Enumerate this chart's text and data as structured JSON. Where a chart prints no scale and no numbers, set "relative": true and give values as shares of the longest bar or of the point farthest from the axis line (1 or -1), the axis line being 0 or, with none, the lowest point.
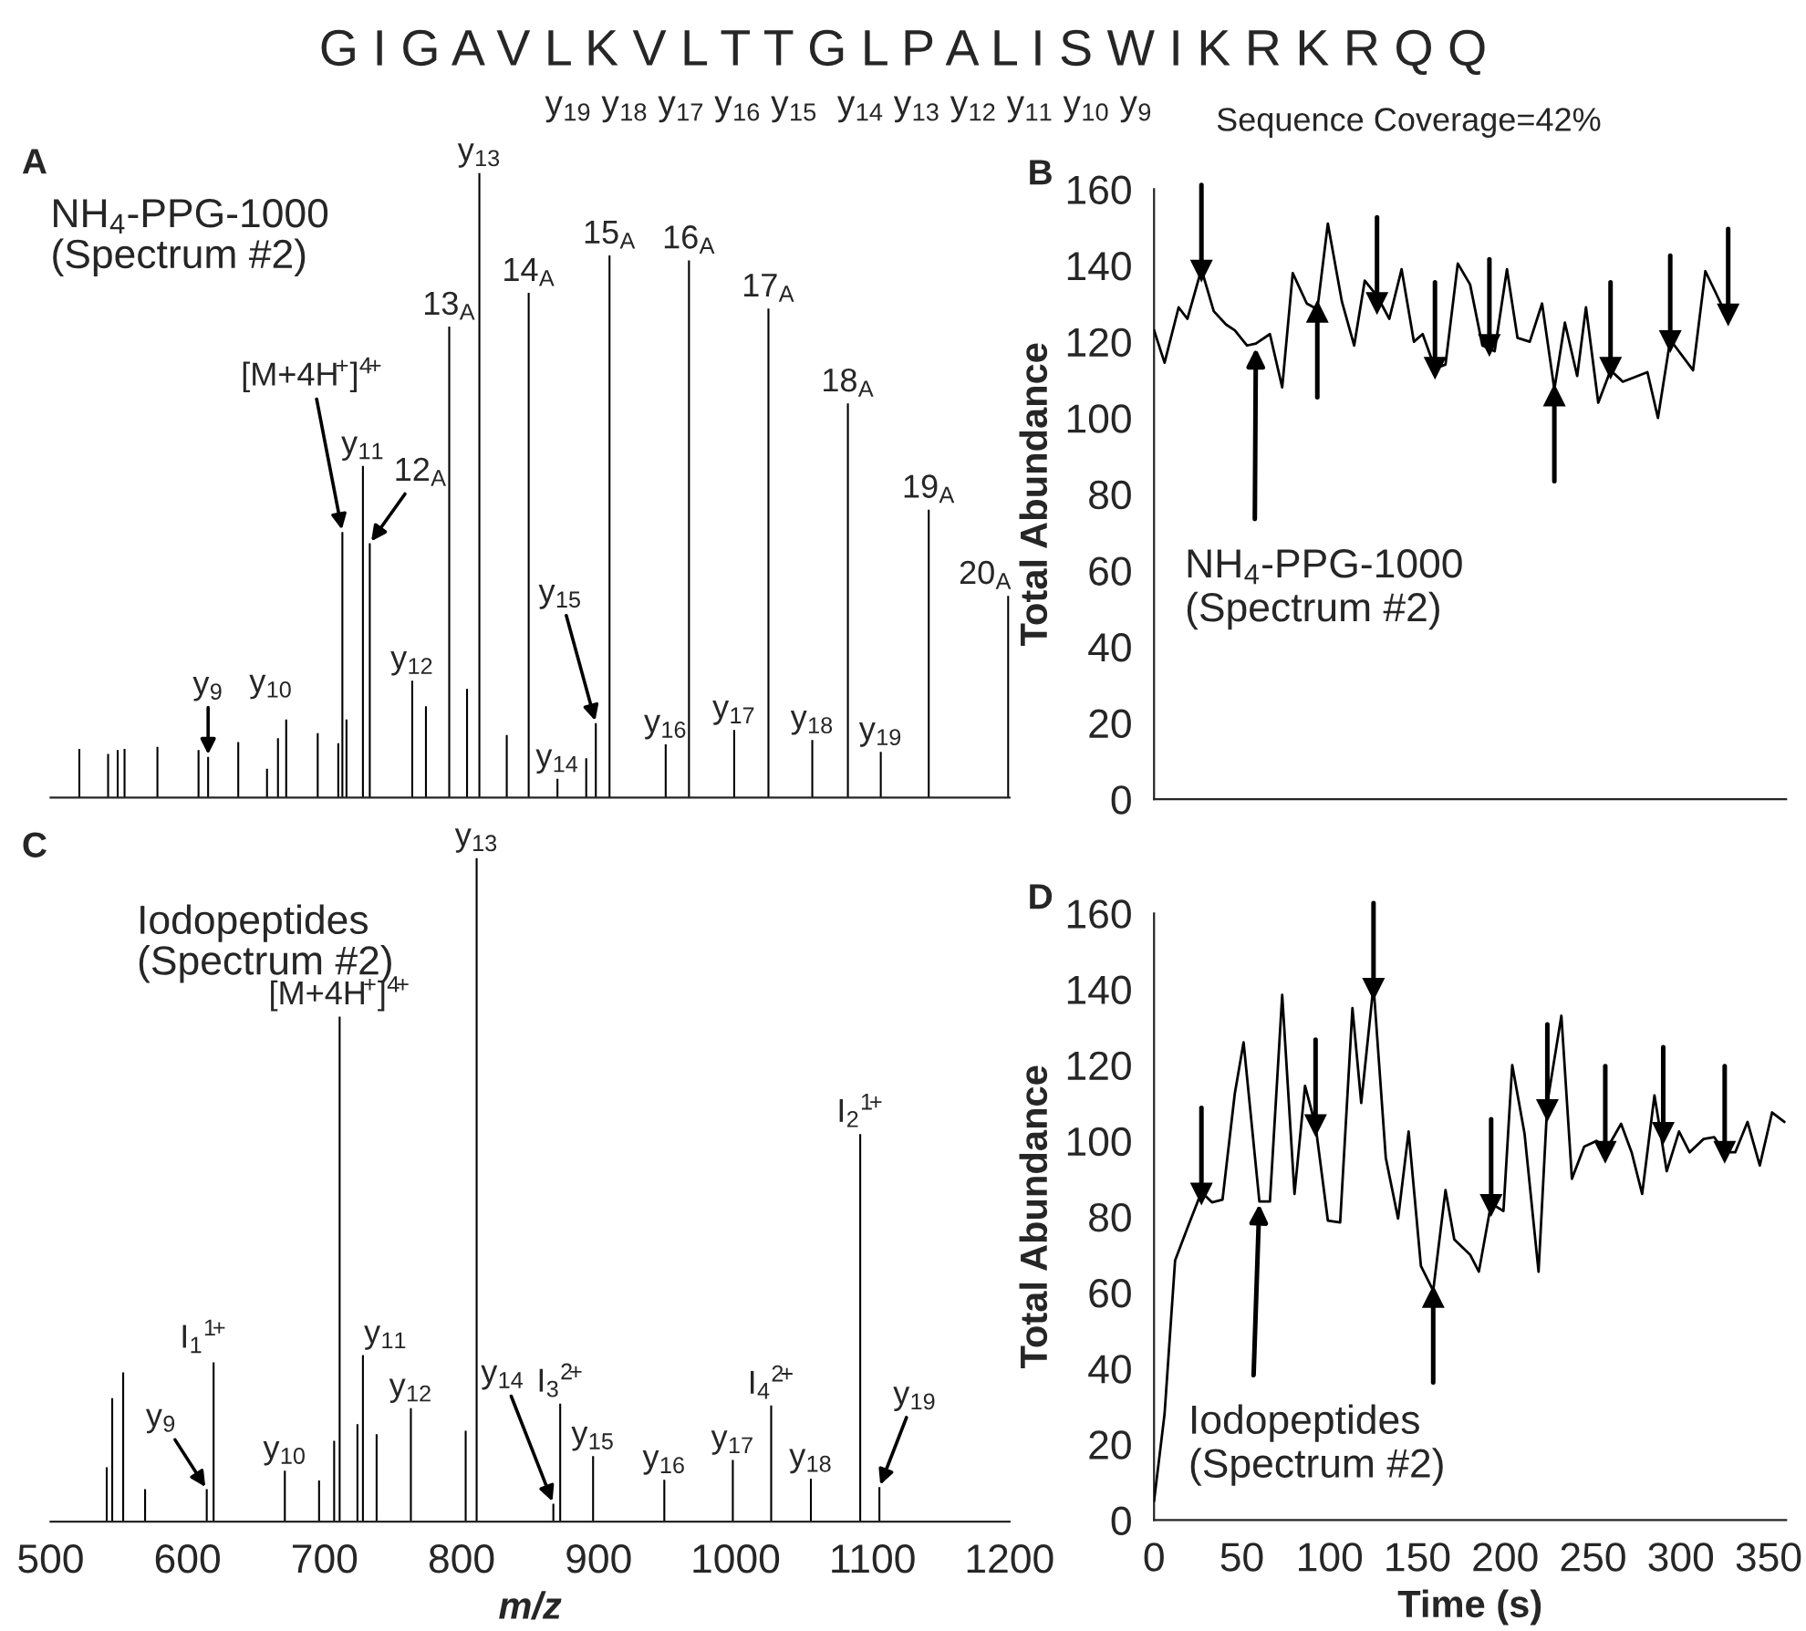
{
  "chart_data": [
    {
      "type": "bar",
      "title": "A",
      "subtitle": "NH$_{4}$-PPG-1000\n(Spectrum #2)",
      "relative": true,
      "tick_labels": false,
      "xlim": [
        500,
        1200
      ],
      "xticks": [
        {
          "value": 500,
          "label": null
        },
        {
          "value": 600,
          "label": null
        },
        {
          "value": 700,
          "label": null
        },
        {
          "value": 800,
          "label": null
        },
        {
          "value": 900,
          "label": null
        },
        {
          "value": 1000,
          "label": null
        },
        {
          "value": 1100,
          "label": null
        },
        {
          "value": 1200,
          "label": null
        }
      ],
      "color": "#000000",
      "x": [
        521,
        542,
        549,
        554,
        578,
        608,
        615,
        637,
        658,
        666,
        672,
        695,
        710,
        713,
        716,
        728,
        733,
        764,
        774,
        791,
        804,
        813,
        833,
        849,
        870,
        891,
        898,
        908,
        949,
        966,
        999,
        1024,
        1056,
        1082,
        1106,
        1141,
        1199
      ],
      "values": [
        0.078,
        0.07,
        0.076,
        0.078,
        0.081,
        0.076,
        0.065,
        0.089,
        0.046,
        0.095,
        0.125,
        0.103,
        0.087,
        0.425,
        0.125,
        0.531,
        0.407,
        0.187,
        0.146,
        0.754,
        0.174,
        1,
        0.1,
        0.808,
        0.03,
        0.063,
        0.119,
        0.868,
        0.085,
        0.86,
        0.108,
        0.783,
        0.092,
        0.631,
        0.073,
        0.461,
        0.323
      ],
      "annotations": [
        "G I G A V L K V L T T G L P A L I S W I K R K R Q Q",
        "y$_{19}$ y$_{18}$ y$_{17}$ y$_{16}$ y$_{15}$  y$_{14}$ y$_{13}$ y$_{12}$ y$_{11}$ y$_{10}$ y$_{9}$",
        "Sequence Coverage=42%",
        {
          "text": "y$_{13}$",
          "x": 813,
          "y": 1
        },
        {
          "text": "13$_{A}$",
          "x": 791,
          "y": 0.754
        },
        {
          "text": "14$_{A}$",
          "x": 849,
          "y": 0.808
        },
        {
          "text": "15$_{A}$",
          "x": 908,
          "y": 0.868
        },
        {
          "text": "16$_{A}$",
          "x": 966,
          "y": 0.86
        },
        {
          "text": "17$_{A}$",
          "x": 1024,
          "y": 0.783
        },
        {
          "text": "18$_{A}$",
          "x": 1082,
          "y": 0.631
        },
        {
          "text": "19$_{A}$",
          "x": 1141,
          "y": 0.461
        },
        {
          "text": "20$_{A}$",
          "x": 1199,
          "y": 0.323
        },
        {
          "text": "[M+4H$^{+}$]$^{4+}$",
          "x": 713,
          "y": 0.425
        },
        {
          "text": "y$_{11}$",
          "x": 728,
          "y": 0.531
        },
        {
          "text": "12$_{A}$",
          "x": 733,
          "y": 0.407
        },
        {
          "text": "y$_{12}$",
          "x": 764,
          "y": 0.187
        },
        {
          "text": "y$_{10}$",
          "x": 672,
          "y": 0.125
        },
        {
          "text": "y$_{9}$",
          "x": 615,
          "y": 0.065
        },
        {
          "text": "y$_{15}$",
          "x": 898,
          "y": 0.119
        },
        {
          "text": "y$_{14}$",
          "x": 870,
          "y": 0.03
        },
        {
          "text": "y$_{16}$",
          "x": 949,
          "y": 0.085
        },
        {
          "text": "y$_{17}$",
          "x": 999,
          "y": 0.108
        },
        {
          "text": "y$_{18}$",
          "x": 1056,
          "y": 0.092
        },
        {
          "text": "y$_{19}$",
          "x": 1106,
          "y": 0.073
        }
      ]
    },
    {
      "type": "line",
      "title": "B",
      "ylabel": "Total Abundance",
      "tick_labels": "y",
      "xlim": [
        0,
        360
      ],
      "xticks": [
        {
          "value": 0,
          "label": null
        },
        {
          "value": 50,
          "label": null
        },
        {
          "value": 100,
          "label": null
        },
        {
          "value": 150,
          "label": null
        },
        {
          "value": 200,
          "label": null
        },
        {
          "value": 250,
          "label": null
        },
        {
          "value": 300,
          "label": null
        },
        {
          "value": 350,
          "label": null
        }
      ],
      "ylim": [
        0,
        160
      ],
      "yticks": [
        0,
        20,
        40,
        60,
        80,
        100,
        120,
        140,
        160
      ],
      "series": [
        {
          "color": "#000000",
          "x": [
            0,
            6,
            14,
            19,
            27,
            34,
            41,
            46,
            53,
            58,
            66,
            73,
            79,
            87,
            93,
            99,
            107,
            114,
            120,
            127,
            134,
            141,
            148,
            153,
            160,
            166,
            173,
            180,
            187,
            194,
            201,
            207,
            214,
            221,
            228,
            234,
            241,
            246,
            253,
            260,
            267,
            281,
            287,
            294,
            307,
            314,
            327
          ],
          "values": [
            123,
            114.5,
            129,
            126,
            139,
            128,
            124.5,
            123,
            119,
            119.5,
            122,
            108,
            138,
            130,
            128.5,
            151,
            130.5,
            119,
            136,
            132,
            126,
            139,
            120,
            122,
            113,
            114,
            140.5,
            135,
            119,
            117.5,
            139,
            121,
            120,
            130,
            107.5,
            125,
            111,
            129,
            104,
            112.5,
            109.5,
            112,
            100,
            120.5,
            112.5,
            138.5,
            126
          ]
        },
        {
          "type": "scatter",
          "marker": "triangle",
          "color": "#000000",
          "x": [
            27,
            127,
            160,
            191,
            260,
            294,
            327
          ],
          "values": [
            138.5,
            130,
            113,
            119,
            113,
            120,
            127
          ]
        },
        {
          "type": "scatter",
          "marker": "triangle",
          "color": "#000000",
          "x": [
            93,
            228
          ],
          "values": [
            128,
            106
          ]
        }
      ],
      "annotations": [
        {
          "text": "NH$_{4}$-PPG-1000\n(Spectrum #2)",
          "x": 58,
          "y": 119
        }
      ]
    },
    {
      "type": "bar",
      "title": "C",
      "subtitle": "Iodopeptides\n(Spectrum #2)",
      "relative": true,
      "tick_labels": "x",
      "xlabel": "m/z",
      "xlim": [
        500,
        1200
      ],
      "xticks": [
        500,
        600,
        700,
        800,
        900,
        1000,
        1100,
        1200
      ],
      "color": "#000000",
      "x": [
        541,
        545,
        553,
        569,
        614,
        619,
        671,
        696,
        707,
        711,
        724,
        728,
        738,
        763,
        803,
        811,
        867,
        872,
        896,
        948,
        998,
        1026,
        1055,
        1091,
        1105
      ],
      "values": [
        0.082,
        0.186,
        0.225,
        0.049,
        0.049,
        0.24,
        0.077,
        0.062,
        0.122,
        0.761,
        0.147,
        0.251,
        0.132,
        0.171,
        0.137,
        1,
        0.027,
        0.178,
        0.099,
        0.063,
        0.093,
        0.175,
        0.065,
        0.584,
        0.052
      ],
      "annotations": [
        {
          "text": "y$_{13}$",
          "x": 811,
          "y": 1
        },
        {
          "text": "[M+4H$^{+}$]$^{4+}$",
          "x": 711,
          "y": 0.761
        },
        {
          "text": "I$_{2}$$^{1+}$",
          "x": 1091,
          "y": 0.584
        },
        {
          "text": "I$_{1}$$^{1+}$",
          "x": 619,
          "y": 0.24
        },
        {
          "text": "y$_{11}$",
          "x": 728,
          "y": 0.251
        },
        {
          "text": "y$_{12}$",
          "x": 763,
          "y": 0.171
        },
        {
          "text": "I$_{3}$$^{2+}$",
          "x": 872,
          "y": 0.178
        },
        {
          "text": "I$_{4}$$^{2+}$",
          "x": 1026,
          "y": 0.175
        },
        {
          "text": "y$_{15}$",
          "x": 896,
          "y": 0.099
        },
        {
          "text": "y$_{16}$",
          "x": 948,
          "y": 0.063
        },
        {
          "text": "y$_{17}$",
          "x": 998,
          "y": 0.093
        },
        {
          "text": "y$_{18}$",
          "x": 1055,
          "y": 0.065
        },
        {
          "text": "y$_{19}$",
          "x": 1105,
          "y": 0.052
        },
        {
          "text": "y$_{10}$",
          "x": 671,
          "y": 0.077
        },
        {
          "text": "y$_{9}$",
          "x": 614,
          "y": 0.049
        },
        {
          "text": "y$_{14}$",
          "x": 867,
          "y": 0.027
        }
      ]
    },
    {
      "type": "line",
      "title": "D",
      "ylabel": "Total Abundance",
      "xlabel": "Time (s)",
      "xlim": [
        0,
        360
      ],
      "xticks": [
        0,
        50,
        100,
        150,
        200,
        250,
        300,
        350
      ],
      "ylim": [
        0,
        160
      ],
      "yticks": [
        0,
        20,
        40,
        60,
        80,
        100,
        120,
        140,
        160
      ],
      "series": [
        {
          "color": "#000000",
          "x": [
            0,
            6,
            12,
            19,
            27,
            33,
            39,
            46,
            51,
            60,
            66,
            73,
            80,
            86,
            92,
            99,
            106,
            113,
            118,
            125,
            132,
            139,
            145,
            152,
            159,
            166,
            171,
            180,
            185,
            192,
            199,
            204,
            211,
            219,
            224,
            232,
            238,
            245,
            252,
            258,
            266,
            272,
            278,
            285,
            292,
            299,
            305,
            313,
            319,
            325,
            331,
            338,
            345,
            352,
            359
          ],
          "values": [
            5,
            28,
            68.5,
            77,
            86.5,
            83.8,
            84.5,
            112.5,
            126,
            84,
            84,
            138.5,
            86,
            114.5,
            104,
            79,
            78.5,
            135,
            110,
            141,
            95.5,
            79.5,
            102.5,
            67,
            60.5,
            87,
            74,
            70,
            65.5,
            83.5,
            81.5,
            120,
            102,
            65.5,
            110,
            133,
            90,
            98.5,
            100,
            98,
            104.5,
            97,
            86,
            112,
            92,
            102.5,
            97,
            100.5,
            101,
            97,
            97,
            105,
            93.5,
            107.5,
            105
          ]
        },
        {
          "type": "scatter",
          "marker": "triangle",
          "color": "#000000",
          "x": [
            27,
            92,
            125,
            192,
            224,
            257,
            290,
            325
          ],
          "values": [
            86,
            104,
            140,
            83,
            108,
            97,
            102,
            97
          ]
        },
        {
          "type": "scatter",
          "marker": "triangle",
          "color": "#000000",
          "x": [
            159
          ],
          "values": [
            59
          ]
        }
      ],
      "annotations": [
        {
          "text": "Iodopeptides\n(Spectrum #2)",
          "x": 60,
          "y": 84
        }
      ]
    }
  ]
}
